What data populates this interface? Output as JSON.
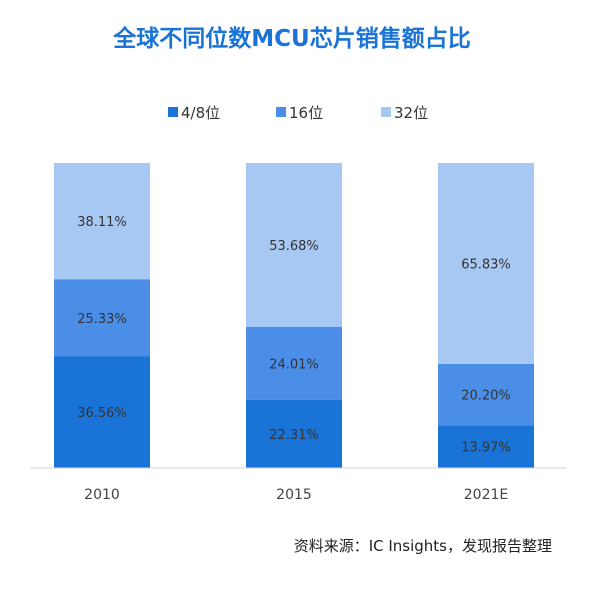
{
  "chart_data": {
    "type": "bar",
    "stacked": true,
    "title": "全球不同位数MCU芯片销售额占比",
    "categories": [
      "2010",
      "2015",
      "2021E"
    ],
    "series": [
      {
        "name": "4/8位",
        "values": [
          36.56,
          22.31,
          13.97
        ],
        "labels": [
          "36.56%",
          "22.31%",
          "13.97%"
        ],
        "color": "#1a73d6"
      },
      {
        "name": "16位",
        "values": [
          25.33,
          24.01,
          20.2
        ],
        "labels": [
          "25.33%",
          "24.01%",
          "20.20%"
        ],
        "color": "#4a8ee8"
      },
      {
        "name": "32位",
        "values": [
          38.11,
          53.68,
          65.83
        ],
        "labels": [
          "38.11%",
          "53.68%",
          "65.83%"
        ],
        "color": "#a8c8f4"
      }
    ],
    "ylim": [
      0,
      100
    ],
    "grid": false,
    "legend_position": "top",
    "title_color": "#1a73d6",
    "source": "资料来源：IC Insights，发现报告整理"
  }
}
